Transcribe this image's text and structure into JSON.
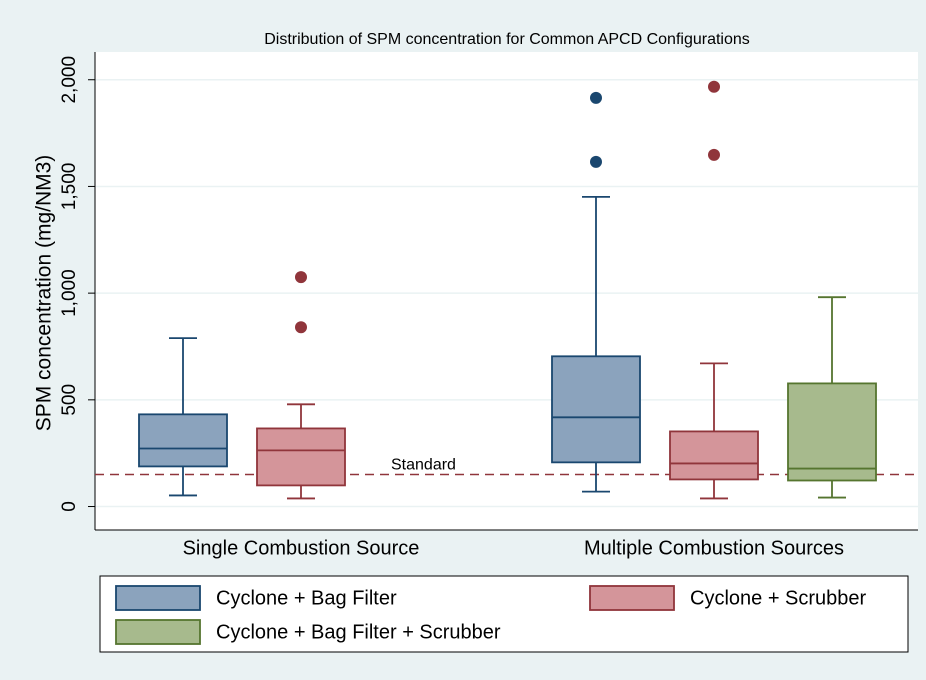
{
  "chart_data": {
    "type": "box",
    "title": "Distribution of SPM concentration for Common APCD Configurations",
    "y_label": "SPM concentration (mg/NM3)",
    "categories": [
      "Single Combustion Source",
      "Multiple Combustion Sources"
    ],
    "ylim": [
      -110,
      2130
    ],
    "yticks": [
      0,
      500,
      {
        "value": 1000,
        "label": "1,000"
      },
      {
        "value": 1500,
        "label": "1,500"
      },
      {
        "value": 2000,
        "label": "2,000"
      }
    ],
    "grid": true,
    "reference_line": {
      "value": 150,
      "label": "Standard",
      "color": "#90353b"
    },
    "legend_position": "bottom",
    "series": [
      {
        "name": "Cyclone + Bag Filter",
        "color": "#8ba3bd",
        "stroke": "#1a476f",
        "values": [
          {
            "min": 52,
            "q1": 188,
            "median": 272,
            "q3": 432,
            "max": 789,
            "outliers": []
          },
          {
            "min": 70,
            "q1": 207,
            "median": 418,
            "q3": 704,
            "max": 1451,
            "outliers": [
              1615,
              1915
            ]
          }
        ]
      },
      {
        "name": "Cyclone + Scrubber",
        "color": "#d4959a",
        "stroke": "#90353b",
        "values": [
          {
            "min": 38,
            "q1": 99,
            "median": 263,
            "q3": 366,
            "max": 479,
            "outliers": [
              840,
              1075
            ]
          },
          {
            "min": 38,
            "q1": 127,
            "median": 202,
            "q3": 352,
            "max": 671,
            "outliers": [
              1648,
              1967
            ]
          }
        ]
      },
      {
        "name": "Cyclone + Bag Filter + Scrubber",
        "color": "#a7ba8d",
        "stroke": "#55752f",
        "values": [
          null,
          {
            "min": 42,
            "q1": 122,
            "median": 178,
            "q3": 577,
            "max": 981,
            "outliers": []
          }
        ]
      }
    ]
  }
}
